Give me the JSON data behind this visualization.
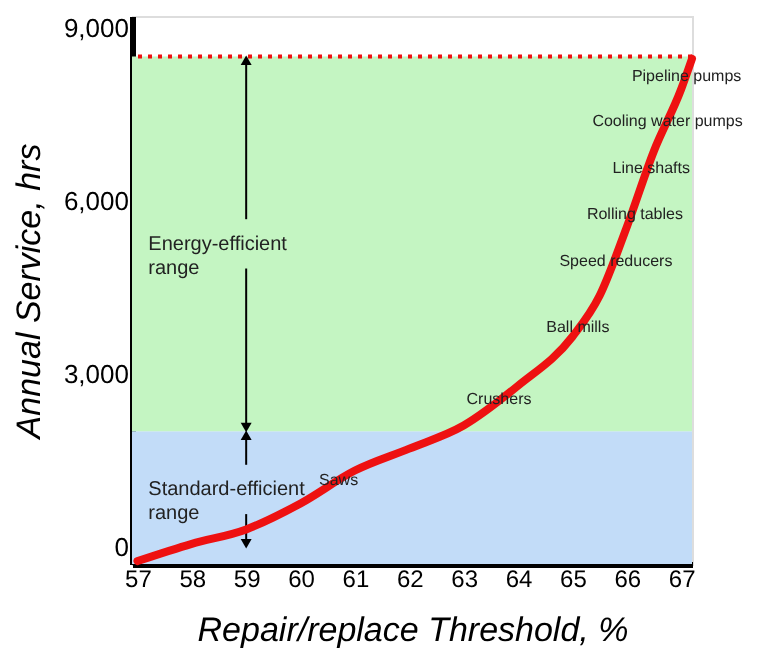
{
  "chart_data": {
    "type": "line",
    "xlabel": "Repair/replace Threshold, %",
    "ylabel": "Annual Service, hrs",
    "xlim": [
      56.9,
      67.2
    ],
    "ylim": [
      -300,
      9200
    ],
    "xticks": [
      57,
      58,
      59,
      60,
      61,
      62,
      63,
      64,
      65,
      66,
      67
    ],
    "yticks": [
      {
        "value": 0,
        "label": "0"
      },
      {
        "value": 3000,
        "label": "3,000"
      },
      {
        "value": 6000,
        "label": "6,000"
      },
      {
        "value": 9000,
        "label": "9,000"
      }
    ],
    "x": [
      57,
      58,
      59,
      60,
      61,
      62,
      63,
      64,
      65,
      65.5,
      66,
      66.5,
      67,
      67.2
    ],
    "series": [
      {
        "color": "#ee1111",
        "values": [
          -250,
          50,
          300,
          750,
          1320,
          1700,
          2100,
          2790,
          3640,
          4350,
          5540,
          6860,
          7930,
          8460
        ]
      }
    ],
    "bands": [
      {
        "axis": "y",
        "from": -300,
        "to": 2000,
        "label": "Standard-efficient range",
        "color": "#c2dcf8"
      },
      {
        "axis": "y",
        "from": 2000,
        "to": 8500,
        "label": "Energy-efficient range",
        "color": "#c4f5c2"
      }
    ],
    "ref_lines": [
      {
        "axis": "y",
        "value": 8500,
        "color": "#ee1111",
        "line_style": "dotted"
      }
    ],
    "annotations": [
      {
        "text": "Pipeline pumps",
        "x": 67.1,
        "y": 8140
      },
      {
        "text": "Cooling water pumps",
        "x": 66.75,
        "y": 7360
      },
      {
        "text": "Line shafts",
        "x": 66.45,
        "y": 6540
      },
      {
        "text": "Rolling tables",
        "x": 66.15,
        "y": 5750
      },
      {
        "text": "Speed reducers",
        "x": 65.8,
        "y": 4930
      },
      {
        "text": "Ball mills",
        "x": 65.1,
        "y": 3790
      },
      {
        "text": "Crushers",
        "x": 63.65,
        "y": 2540
      },
      {
        "text": "Saws",
        "x": 60.7,
        "y": 1140
      }
    ],
    "grid": false,
    "line_style": "solid",
    "marker": "none"
  }
}
